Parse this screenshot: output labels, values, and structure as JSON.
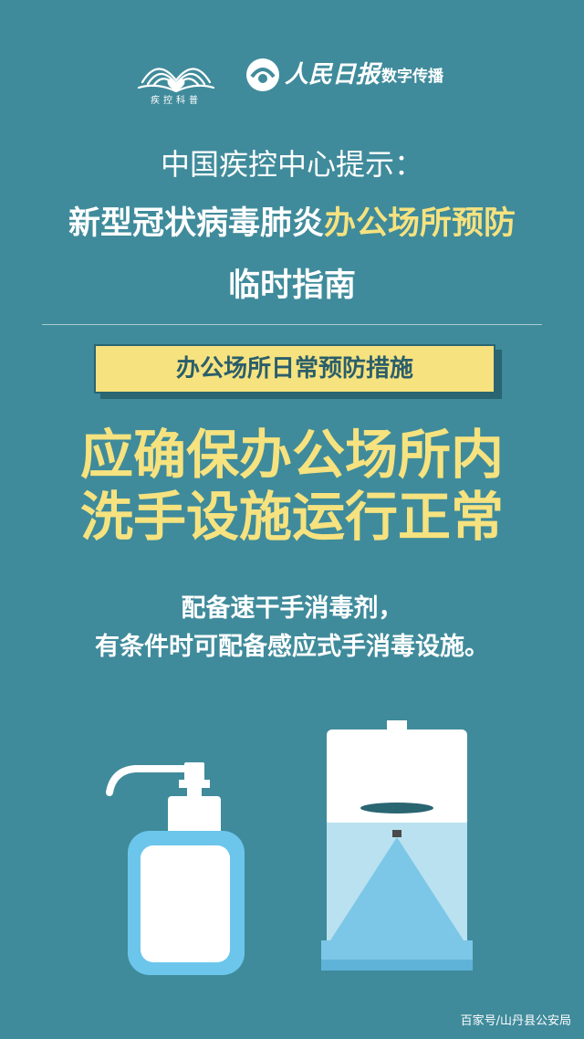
{
  "logos": {
    "left_caption": "疾控科普",
    "left_icon": "open-book-heart-icon",
    "right_icon": "peoples-daily-emblem-icon",
    "right_brand": "人民日报",
    "right_suffix": "数字传播"
  },
  "title": {
    "line1": "中国疾控中心提示：",
    "line2_part1": "新型冠状病毒肺炎",
    "line2_part2": "办公场所预防",
    "line3": "临时指南"
  },
  "label": "办公场所日常预防措施",
  "headline": [
    "应确保办公场所内",
    "洗手设施运行正常"
  ],
  "body": [
    "配备速干手消毒剂，",
    "有条件时可配备感应式手消毒设施。"
  ],
  "illustrations": {
    "left": "pump-sanitizer-bottle-icon",
    "right": "automatic-sanitizer-dispenser-icon"
  },
  "watermark": "百家号/山丹县公安局",
  "colors": {
    "background": "#3f8b9b",
    "accent_yellow": "#f6e27f",
    "dark_teal": "#2a6572",
    "text_white": "#ffffff"
  }
}
